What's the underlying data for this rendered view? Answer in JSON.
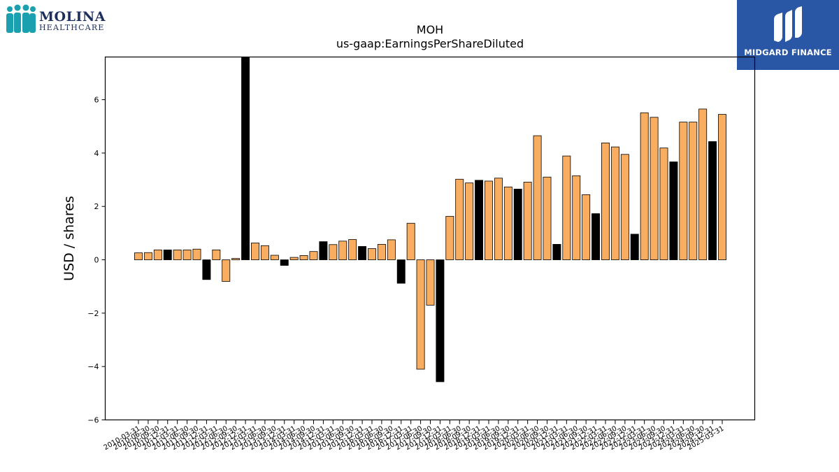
{
  "logos": {
    "left_brand_line1": "MOLINA",
    "left_brand_line2": "HEALTHCARE",
    "right_brand": "MIDGARD FINANCE"
  },
  "colors": {
    "regular_bar": "#f9ad60",
    "annual_bar": "#000000",
    "brand_blue": "#2a56a6",
    "molina_teal": "#1aa0ae",
    "molina_navy": "#1d2f5e"
  },
  "chart_data": {
    "type": "bar",
    "title": "MOH",
    "subtitle": "us-gaap:EarningsPerShareDiluted",
    "xlabel": "",
    "ylabel": "USD / shares",
    "ylim": [
      -6,
      7.6
    ],
    "yticks": [
      -6,
      -4,
      -2,
      0,
      2,
      4,
      6
    ],
    "ytick_labels": [
      "−6",
      "−4",
      "−2",
      "0",
      "2",
      "4",
      "6"
    ],
    "grid": false,
    "legend": false,
    "xtick_labels": [
      "2010-03-31",
      "2010-06-30",
      "2010-09-30",
      "2010-12-31",
      "2011-03-31",
      "2011-06-30",
      "2011-09-30",
      "2011-12-31",
      "2012-03-31",
      "2012-06-30",
      "2012-09-30",
      "2012-12-31",
      "2013-03-31",
      "2013-06-30",
      "2013-09-30",
      "2013-12-31",
      "2014-03-31",
      "2014-06-30",
      "2014-09-30",
      "2014-12-31",
      "2015-03-31",
      "2015-06-30",
      "2015-09-30",
      "2015-12-31",
      "2016-03-31",
      "2016-06-30",
      "2016-09-30",
      "2016-12-31",
      "2017-03-31",
      "2017-06-30",
      "2017-09-30",
      "2017-12-31",
      "2018-03-31",
      "2018-06-30",
      "2018-09-30",
      "2018-12-31",
      "2019-03-31",
      "2019-06-30",
      "2019-09-30",
      "2019-12-31",
      "2020-03-31",
      "2020-06-30",
      "2020-09-30",
      "2020-12-31",
      "2021-03-31",
      "2021-06-30",
      "2021-09-30",
      "2021-12-31",
      "2022-03-31",
      "2022-06-30",
      "2022-09-30",
      "2022-12-31",
      "2023-03-31",
      "2023-06-30",
      "2023-09-30",
      "2023-12-31",
      "2024-03-31",
      "2024-06-30",
      "2024-09-30",
      "2024-12-31",
      "2025-03-31"
    ],
    "values": [
      0.26,
      0.27,
      0.37,
      0.37,
      0.37,
      0.37,
      0.4,
      -0.74,
      0.37,
      -0.81,
      0.05,
      7.6,
      0.63,
      0.53,
      0.17,
      -0.21,
      0.09,
      0.16,
      0.31,
      0.68,
      0.57,
      0.7,
      0.76,
      0.5,
      0.42,
      0.58,
      0.75,
      -0.88,
      1.37,
      -4.1,
      -1.7,
      -4.57,
      1.63,
      3.02,
      2.88,
      2.98,
      2.95,
      3.06,
      2.73,
      2.65,
      2.91,
      4.65,
      3.1,
      0.58,
      3.89,
      3.15,
      2.44,
      1.73,
      4.38,
      4.23,
      3.95,
      0.96,
      5.51,
      5.34,
      4.19,
      3.67,
      5.16,
      5.16,
      5.65,
      4.43,
      5.45
    ],
    "annual": [
      false,
      false,
      false,
      true,
      false,
      false,
      false,
      true,
      false,
      false,
      false,
      true,
      false,
      false,
      false,
      true,
      false,
      false,
      false,
      true,
      false,
      false,
      false,
      true,
      false,
      false,
      false,
      true,
      false,
      false,
      false,
      true,
      false,
      false,
      false,
      true,
      false,
      false,
      false,
      true,
      false,
      false,
      false,
      true,
      false,
      false,
      false,
      true,
      false,
      false,
      false,
      true,
      false,
      false,
      false,
      true,
      false,
      false,
      false,
      true,
      false
    ]
  }
}
